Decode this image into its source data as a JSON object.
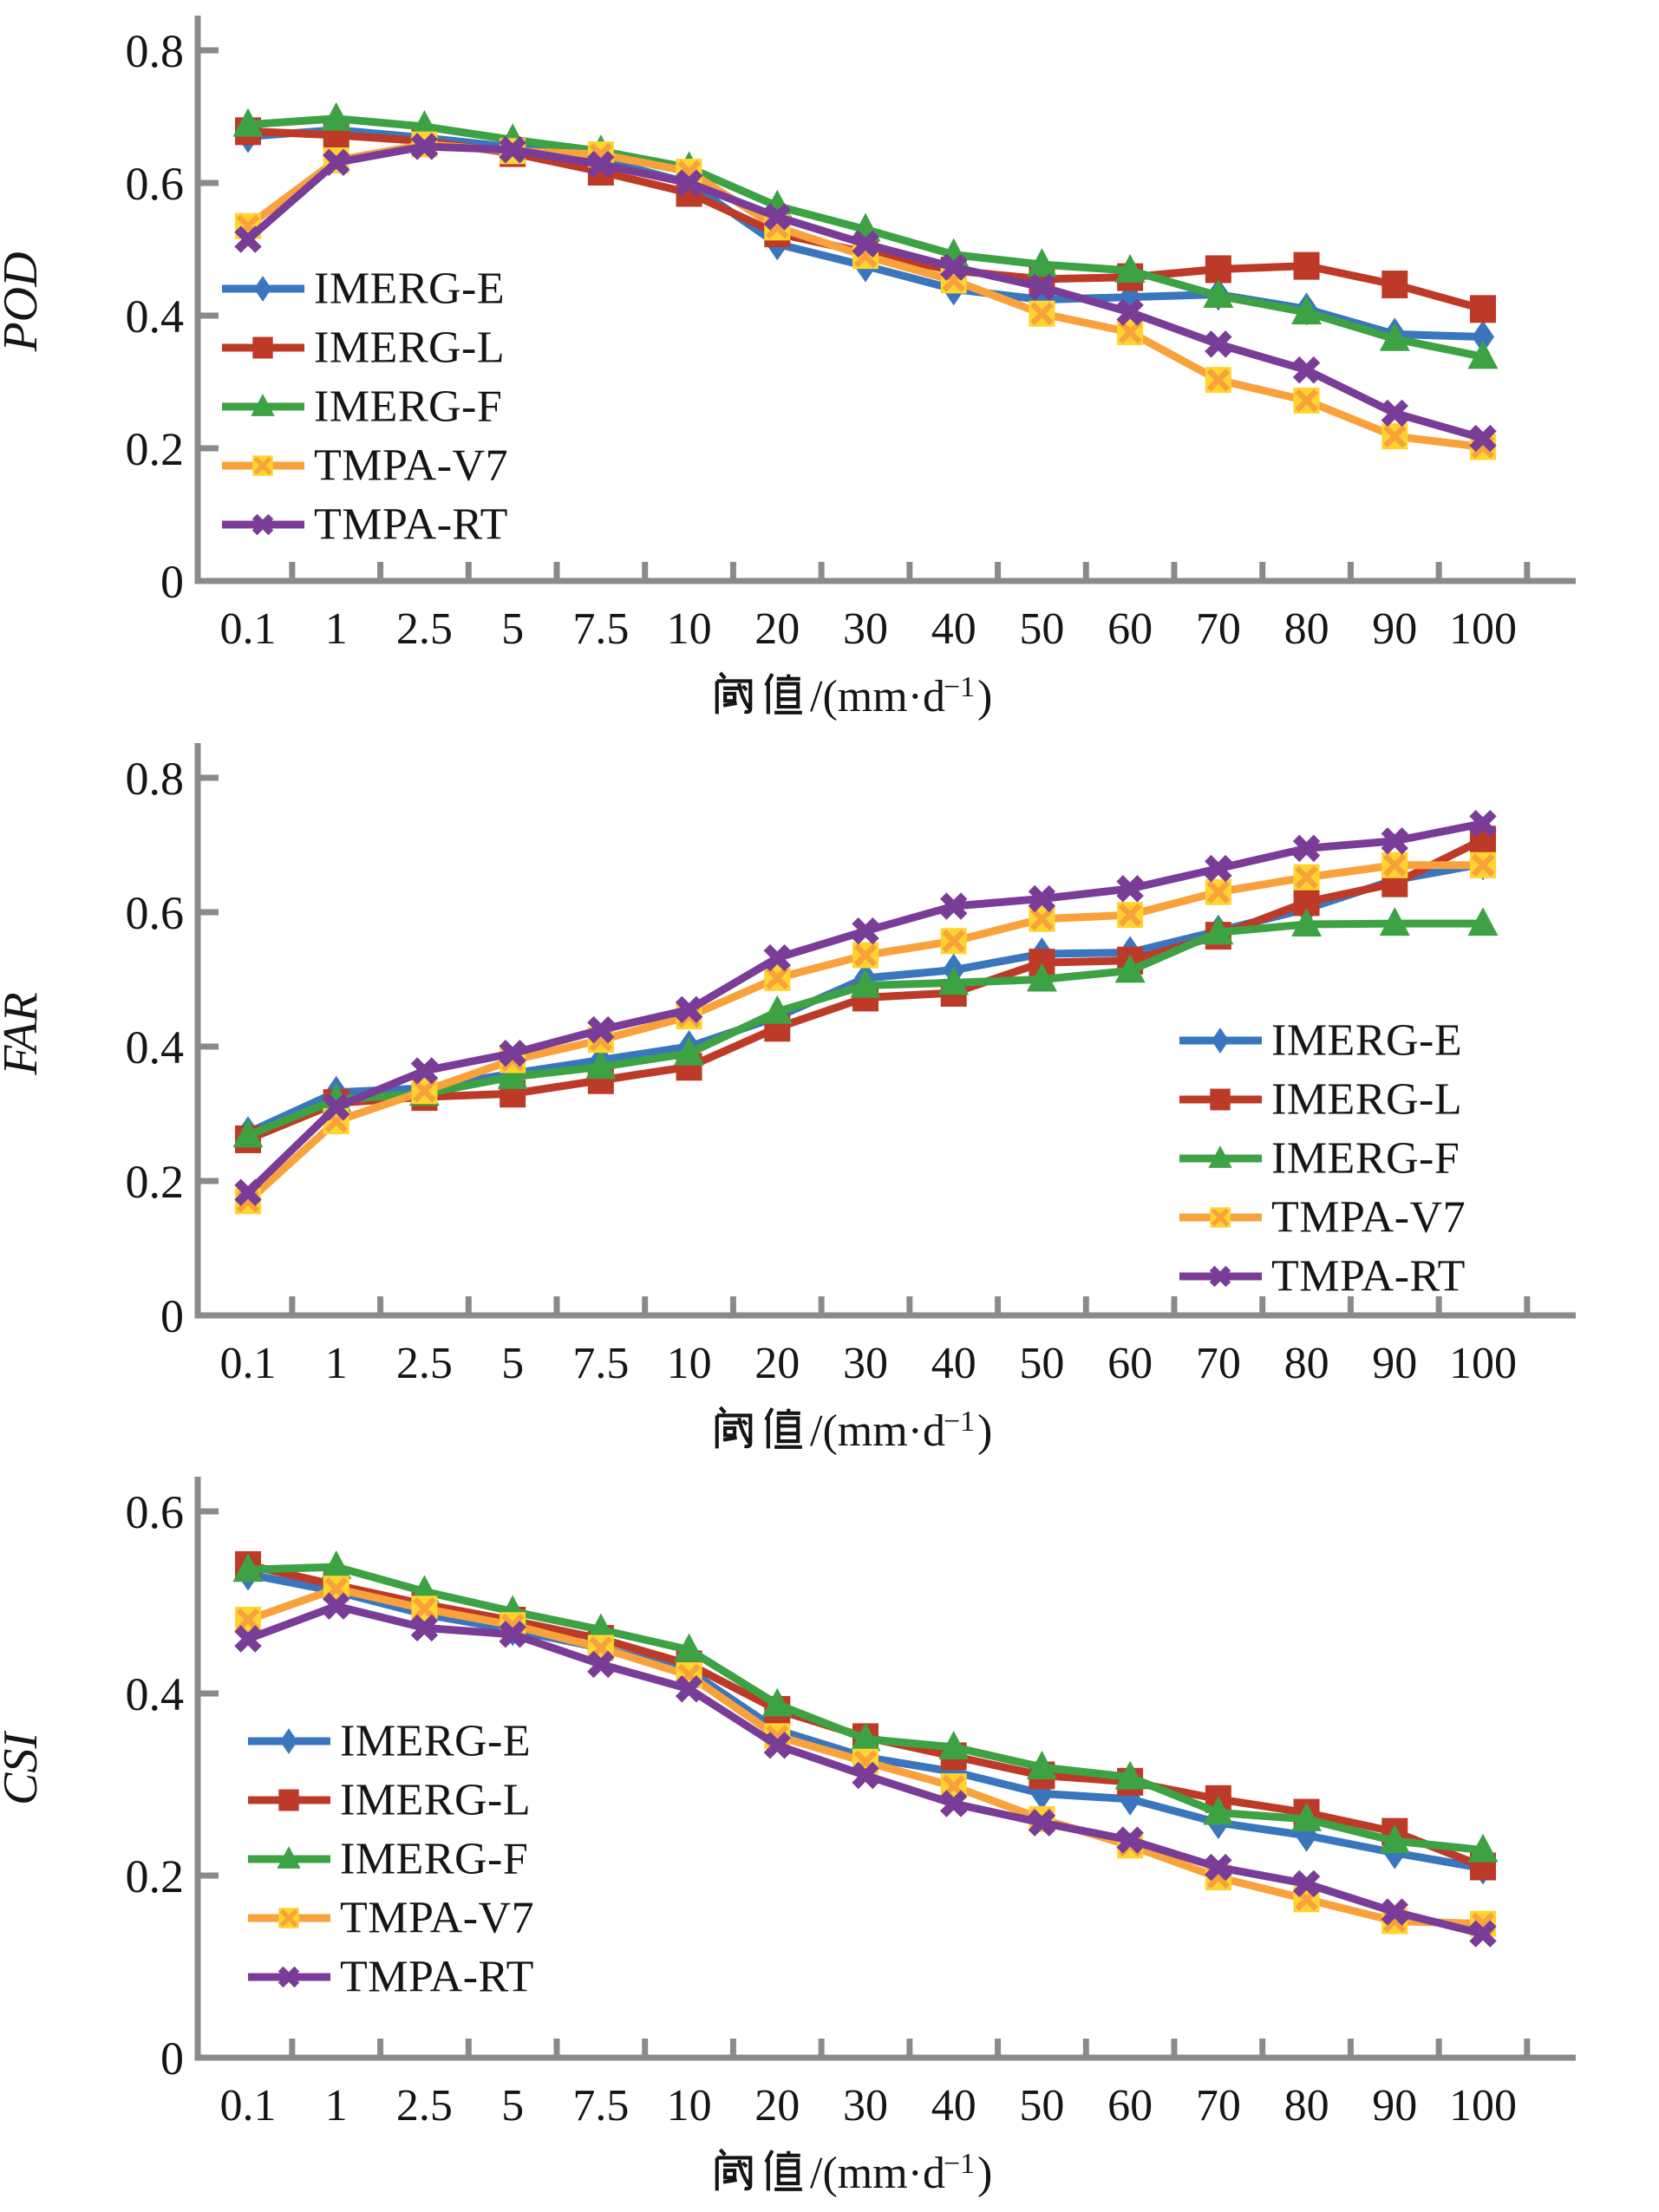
{
  "figure": {
    "xlabel": "阈值/(mm·d⁻¹)",
    "background": "#ffffff",
    "axis_color": "#8a8a8a",
    "text_color": "#151515"
  },
  "chart_data": [
    {
      "type": "line",
      "ylabel": "POD",
      "xlabel": "阈值/(mm·d⁻¹)",
      "ylim": [
        0,
        0.8
      ],
      "yticks": [
        "0",
        "0.2",
        "0.4",
        "0.6",
        "0.8"
      ],
      "categories": [
        "0.1",
        "1",
        "2.5",
        "5",
        "7.5",
        "10",
        "20",
        "30",
        "40",
        "50",
        "60",
        "70",
        "80",
        "90",
        "100"
      ],
      "legend_position": "inside-left",
      "series": [
        {
          "name": "IMERG-E",
          "color": "#3A76BE",
          "marker": "diamond",
          "values": [
            0.67,
            0.68,
            0.668,
            0.654,
            0.635,
            0.6,
            0.508,
            0.475,
            0.44,
            0.424,
            0.428,
            0.432,
            0.41,
            0.372,
            0.368
          ]
        },
        {
          "name": "IMERG-L",
          "color": "#BE3A28",
          "marker": "square",
          "values": [
            0.678,
            0.672,
            0.663,
            0.645,
            0.617,
            0.585,
            0.524,
            0.495,
            0.468,
            0.455,
            0.458,
            0.47,
            0.475,
            0.447,
            0.41
          ]
        },
        {
          "name": "IMERG-F",
          "color": "#3DA243",
          "marker": "triangle",
          "values": [
            0.688,
            0.697,
            0.685,
            0.665,
            0.648,
            0.623,
            0.565,
            0.53,
            0.492,
            0.477,
            0.468,
            0.43,
            0.405,
            0.365,
            0.338
          ]
        },
        {
          "name": "TMPA-V7",
          "color": "#F9A23C",
          "marker": "xsquare",
          "values": [
            0.535,
            0.634,
            0.658,
            0.648,
            0.643,
            0.617,
            0.533,
            0.49,
            0.453,
            0.403,
            0.375,
            0.303,
            0.272,
            0.218,
            0.202
          ]
        },
        {
          "name": "TMPA-RT",
          "color": "#7A3D97",
          "marker": "xcross",
          "values": [
            0.515,
            0.631,
            0.655,
            0.65,
            0.628,
            0.6,
            0.549,
            0.508,
            0.473,
            0.443,
            0.405,
            0.357,
            0.318,
            0.253,
            0.215
          ]
        }
      ]
    },
    {
      "type": "line",
      "ylabel": "FAR",
      "xlabel": "阈值/(mm·d⁻¹)",
      "ylim": [
        0,
        0.8
      ],
      "yticks": [
        "0",
        "0.2",
        "0.4",
        "0.6",
        "0.8"
      ],
      "categories": [
        "0.1",
        "1",
        "2.5",
        "5",
        "7.5",
        "10",
        "20",
        "30",
        "40",
        "50",
        "60",
        "70",
        "80",
        "90",
        "100"
      ],
      "legend_position": "inside-right",
      "series": [
        {
          "name": "IMERG-E",
          "color": "#3A76BE",
          "marker": "diamond",
          "values": [
            0.272,
            0.332,
            0.338,
            0.36,
            0.38,
            0.4,
            0.444,
            0.502,
            0.514,
            0.538,
            0.54,
            0.572,
            0.605,
            0.648,
            0.672
          ]
        },
        {
          "name": "IMERG-L",
          "color": "#BE3A28",
          "marker": "square",
          "values": [
            0.262,
            0.316,
            0.325,
            0.33,
            0.35,
            0.37,
            0.428,
            0.473,
            0.48,
            0.525,
            0.528,
            0.565,
            0.615,
            0.643,
            0.708
          ]
        },
        {
          "name": "IMERG-F",
          "color": "#3DA243",
          "marker": "triangle",
          "values": [
            0.268,
            0.321,
            0.33,
            0.355,
            0.37,
            0.39,
            0.452,
            0.491,
            0.495,
            0.5,
            0.513,
            0.57,
            0.582,
            0.583,
            0.583
          ]
        },
        {
          "name": "TMPA-V7",
          "color": "#F9A23C",
          "marker": "xsquare",
          "values": [
            0.17,
            0.289,
            0.334,
            0.38,
            0.41,
            0.445,
            0.502,
            0.536,
            0.557,
            0.59,
            0.596,
            0.63,
            0.652,
            0.67,
            0.67
          ]
        },
        {
          "name": "TMPA-RT",
          "color": "#7A3D97",
          "marker": "xcross",
          "values": [
            0.183,
            0.31,
            0.364,
            0.39,
            0.425,
            0.455,
            0.532,
            0.572,
            0.609,
            0.62,
            0.635,
            0.665,
            0.695,
            0.706,
            0.732
          ]
        }
      ]
    },
    {
      "type": "line",
      "ylabel": "CSI",
      "xlabel": "阈值/(mm·d⁻¹)",
      "ylim": [
        0,
        0.6
      ],
      "yticks": [
        "0",
        "0.2",
        "0.4",
        "0.6"
      ],
      "categories": [
        "0.1",
        "1",
        "2.5",
        "5",
        "7.5",
        "10",
        "20",
        "30",
        "40",
        "50",
        "60",
        "70",
        "80",
        "90",
        "100"
      ],
      "legend_position": "inside-left",
      "series": [
        {
          "name": "IMERG-E",
          "color": "#3A76BE",
          "marker": "diamond",
          "values": [
            0.531,
            0.512,
            0.487,
            0.47,
            0.45,
            0.425,
            0.36,
            0.33,
            0.314,
            0.29,
            0.284,
            0.258,
            0.244,
            0.225,
            0.208
          ]
        },
        {
          "name": "IMERG-L",
          "color": "#BE3A28",
          "marker": "square",
          "values": [
            0.541,
            0.519,
            0.498,
            0.48,
            0.46,
            0.432,
            0.382,
            0.352,
            0.331,
            0.31,
            0.303,
            0.284,
            0.269,
            0.248,
            0.21
          ]
        },
        {
          "name": "IMERG-F",
          "color": "#3DA243",
          "marker": "triangle",
          "values": [
            0.536,
            0.539,
            0.512,
            0.49,
            0.47,
            0.448,
            0.388,
            0.35,
            0.341,
            0.319,
            0.308,
            0.269,
            0.262,
            0.238,
            0.228
          ]
        },
        {
          "name": "TMPA-V7",
          "color": "#F9A23C",
          "marker": "xsquare",
          "values": [
            0.481,
            0.515,
            0.493,
            0.475,
            0.45,
            0.42,
            0.353,
            0.325,
            0.298,
            0.262,
            0.233,
            0.198,
            0.174,
            0.15,
            0.147
          ]
        },
        {
          "name": "TMPA-RT",
          "color": "#7A3D97",
          "marker": "xcross",
          "values": [
            0.46,
            0.496,
            0.472,
            0.465,
            0.432,
            0.405,
            0.343,
            0.31,
            0.279,
            0.258,
            0.239,
            0.209,
            0.191,
            0.16,
            0.136
          ]
        }
      ]
    }
  ]
}
